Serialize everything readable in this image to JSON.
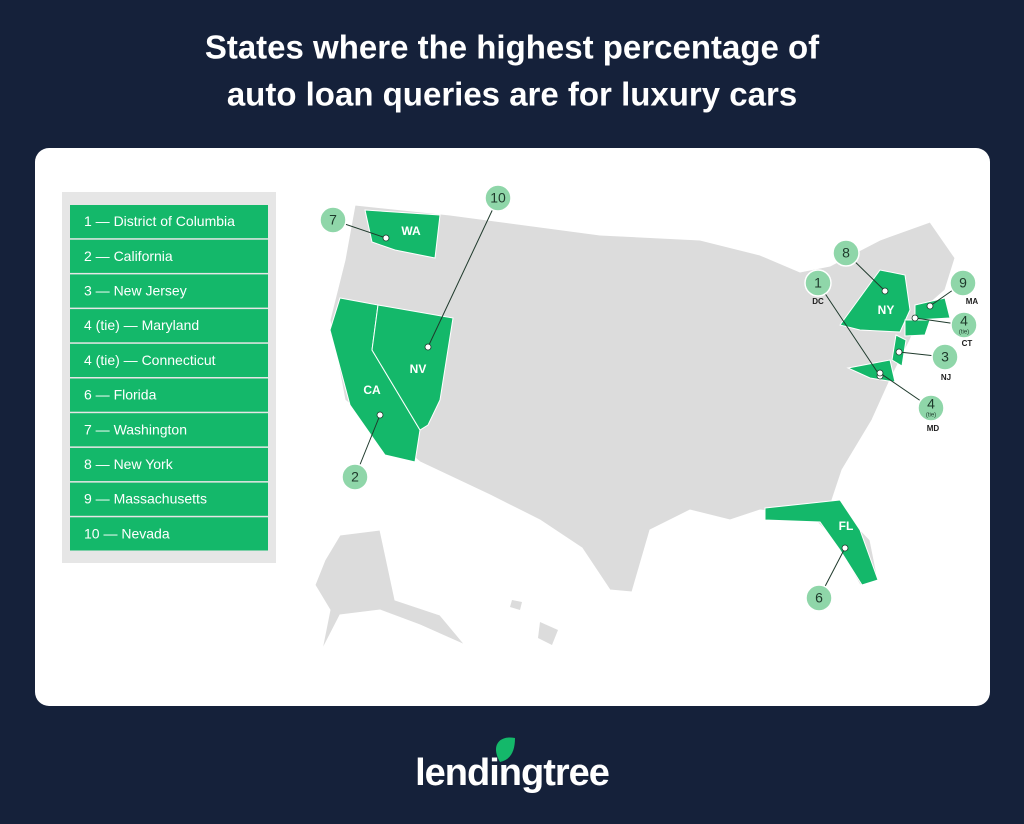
{
  "title": [
    "States where the highest percentage of",
    "auto loan queries are for luxury cars"
  ],
  "ranking": [
    "1 — District of Columbia",
    "2 — California",
    "3 — New Jersey",
    "4 (tie) — Maryland",
    "4 (tie) — Connecticut",
    "6 — Florida",
    "7 — Washington",
    "8 — New York",
    "9 — Massachusetts",
    "10 — Nevada"
  ],
  "markers": [
    {
      "number": "1",
      "state": "DC"
    },
    {
      "number": "2",
      "state": "CA"
    },
    {
      "number": "3",
      "state": "NJ"
    },
    {
      "number": "4",
      "note": "(tie)",
      "state": "MD"
    },
    {
      "number": "4",
      "note": "(tie)",
      "state": "CT"
    },
    {
      "number": "6",
      "state": "FL"
    },
    {
      "number": "7",
      "state": "WA"
    },
    {
      "number": "8",
      "state": "NY"
    },
    {
      "number": "9",
      "state": "MA"
    },
    {
      "number": "10",
      "state": "NV"
    }
  ],
  "logo": "lendingtree"
}
